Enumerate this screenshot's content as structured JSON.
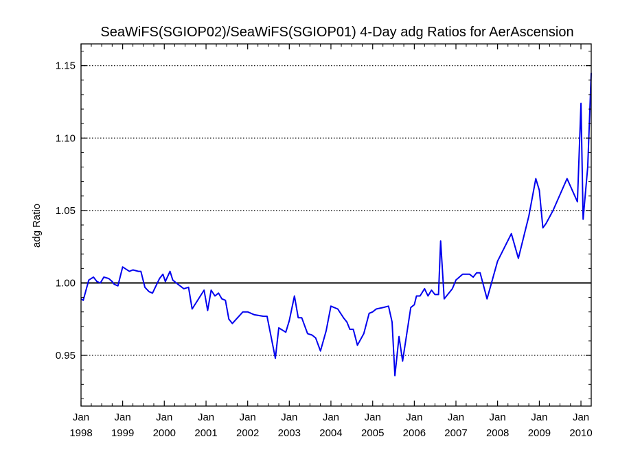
{
  "chart_data": {
    "type": "line",
    "title": "SeaWiFS(SGIOP02)/SeaWiFS(SGIOP01) 4-Day adg Ratios for AerAscension",
    "xlabel": "",
    "ylabel": "adg Ratio",
    "xlim": [
      "1998-01-01",
      "2010-04-01"
    ],
    "ylim": [
      0.915,
      1.165
    ],
    "y_ticks": [
      0.95,
      1.0,
      1.05,
      1.1,
      1.15
    ],
    "y_tick_labels": [
      "0.95",
      "1.00",
      "1.05",
      "1.10",
      "1.15"
    ],
    "x_ticks": [
      {
        "date": "1998-01-01",
        "month": "Jan",
        "year": "1998"
      },
      {
        "date": "1999-01-01",
        "month": "Jan",
        "year": "1999"
      },
      {
        "date": "2000-01-01",
        "month": "Jan",
        "year": "2000"
      },
      {
        "date": "2001-01-01",
        "month": "Jan",
        "year": "2001"
      },
      {
        "date": "2002-01-01",
        "month": "Jan",
        "year": "2002"
      },
      {
        "date": "2003-01-01",
        "month": "Jan",
        "year": "2003"
      },
      {
        "date": "2004-01-01",
        "month": "Jan",
        "year": "2004"
      },
      {
        "date": "2005-01-01",
        "month": "Jan",
        "year": "2005"
      },
      {
        "date": "2006-01-01",
        "month": "Jan",
        "year": "2006"
      },
      {
        "date": "2007-01-01",
        "month": "Jan",
        "year": "2007"
      },
      {
        "date": "2008-01-01",
        "month": "Jan",
        "year": "2008"
      },
      {
        "date": "2009-01-01",
        "month": "Jan",
        "year": "2009"
      },
      {
        "date": "2010-01-01",
        "month": "Jan",
        "year": "2010"
      }
    ],
    "reference_line": 1.0,
    "grid": "dotted horizontal at y ticks",
    "series": [
      {
        "color": "#0000ee",
        "points": [
          [
            "1998-01-01",
            0.989
          ],
          [
            "1998-01-20",
            0.988
          ],
          [
            "1998-03-10",
            1.002
          ],
          [
            "1998-04-20",
            1.004
          ],
          [
            "1998-05-20",
            1.001
          ],
          [
            "1998-06-20",
            1.0
          ],
          [
            "1998-07-20",
            1.004
          ],
          [
            "1998-09-01",
            1.003
          ],
          [
            "1998-10-01",
            1.001
          ],
          [
            "1998-10-20",
            0.999
          ],
          [
            "1998-11-20",
            0.998
          ],
          [
            "1999-01-01",
            1.011
          ],
          [
            "1999-03-01",
            1.008
          ],
          [
            "1999-04-01",
            1.009
          ],
          [
            "1999-05-20",
            1.008
          ],
          [
            "1999-06-10",
            1.008
          ],
          [
            "1999-07-15",
            0.997
          ],
          [
            "1999-08-20",
            0.994
          ],
          [
            "1999-09-20",
            0.993
          ],
          [
            "1999-11-20",
            1.003
          ],
          [
            "1999-12-20",
            1.006
          ],
          [
            "2000-01-10",
            1.001
          ],
          [
            "2000-02-20",
            1.008
          ],
          [
            "2000-03-15",
            1.002
          ],
          [
            "2000-05-01",
            0.999
          ],
          [
            "2000-06-20",
            0.996
          ],
          [
            "2000-08-01",
            0.997
          ],
          [
            "2000-09-01",
            0.982
          ],
          [
            "2000-12-15",
            0.995
          ],
          [
            "2001-01-15",
            0.981
          ],
          [
            "2001-02-15",
            0.995
          ],
          [
            "2001-03-20",
            0.991
          ],
          [
            "2001-04-20",
            0.993
          ],
          [
            "2001-05-20",
            0.989
          ],
          [
            "2001-06-20",
            0.988
          ],
          [
            "2001-07-20",
            0.975
          ],
          [
            "2001-08-20",
            0.972
          ],
          [
            "2001-11-20",
            0.98
          ],
          [
            "2002-01-01",
            0.98
          ],
          [
            "2002-03-01",
            0.978
          ],
          [
            "2002-05-20",
            0.977
          ],
          [
            "2002-06-20",
            0.977
          ],
          [
            "2002-09-01",
            0.948
          ],
          [
            "2002-10-01",
            0.969
          ],
          [
            "2002-12-01",
            0.966
          ],
          [
            "2003-01-01",
            0.974
          ],
          [
            "2003-02-15",
            0.991
          ],
          [
            "2003-03-20",
            0.976
          ],
          [
            "2003-04-20",
            0.976
          ],
          [
            "2003-06-10",
            0.965
          ],
          [
            "2003-07-20",
            0.964
          ],
          [
            "2003-08-20",
            0.962
          ],
          [
            "2003-10-01",
            0.953
          ],
          [
            "2003-11-20",
            0.967
          ],
          [
            "2004-01-01",
            0.984
          ],
          [
            "2004-03-01",
            0.982
          ],
          [
            "2004-04-20",
            0.976
          ],
          [
            "2004-05-20",
            0.973
          ],
          [
            "2004-06-15",
            0.968
          ],
          [
            "2004-07-15",
            0.968
          ],
          [
            "2004-08-20",
            0.957
          ],
          [
            "2004-10-15",
            0.965
          ],
          [
            "2004-12-01",
            0.979
          ],
          [
            "2005-01-01",
            0.98
          ],
          [
            "2005-02-01",
            0.982
          ],
          [
            "2005-04-01",
            0.983
          ],
          [
            "2005-05-20",
            0.984
          ],
          [
            "2005-06-20",
            0.973
          ],
          [
            "2005-07-15",
            0.936
          ],
          [
            "2005-08-20",
            0.963
          ],
          [
            "2005-09-20",
            0.946
          ],
          [
            "2005-12-01",
            0.983
          ],
          [
            "2006-01-01",
            0.985
          ],
          [
            "2006-01-20",
            0.991
          ],
          [
            "2006-02-20",
            0.991
          ],
          [
            "2006-04-01",
            0.996
          ],
          [
            "2006-05-01",
            0.991
          ],
          [
            "2006-06-01",
            0.995
          ],
          [
            "2006-07-01",
            0.992
          ],
          [
            "2006-08-01",
            0.992
          ],
          [
            "2006-08-20",
            1.029
          ],
          [
            "2006-09-20",
            0.989
          ],
          [
            "2006-12-01",
            0.996
          ],
          [
            "2007-01-01",
            1.002
          ],
          [
            "2007-03-01",
            1.006
          ],
          [
            "2007-05-01",
            1.006
          ],
          [
            "2007-06-01",
            1.004
          ],
          [
            "2007-07-01",
            1.007
          ],
          [
            "2007-08-01",
            1.007
          ],
          [
            "2007-10-01",
            0.989
          ],
          [
            "2008-01-01",
            1.015
          ],
          [
            "2008-05-01",
            1.034
          ],
          [
            "2008-07-01",
            1.017
          ],
          [
            "2008-10-01",
            1.046
          ],
          [
            "2008-12-01",
            1.072
          ],
          [
            "2009-01-01",
            1.064
          ],
          [
            "2009-02-01",
            1.038
          ],
          [
            "2009-03-01",
            1.041
          ],
          [
            "2009-05-01",
            1.05
          ],
          [
            "2009-09-01",
            1.072
          ],
          [
            "2009-12-01",
            1.056
          ],
          [
            "2010-01-01",
            1.124
          ],
          [
            "2010-01-20",
            1.044
          ],
          [
            "2010-03-01",
            1.08
          ],
          [
            "2010-04-01",
            1.145
          ]
        ]
      }
    ]
  }
}
